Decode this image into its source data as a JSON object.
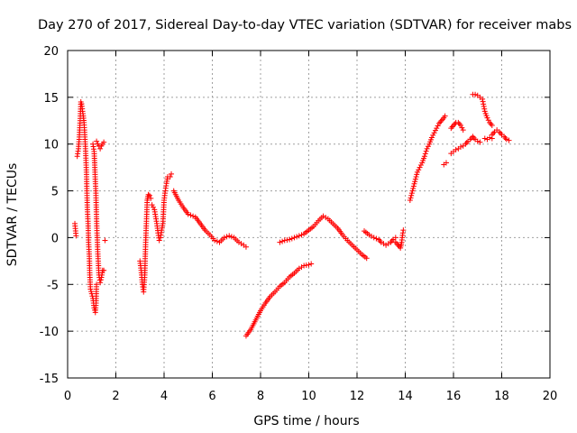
{
  "chart_data": {
    "type": "scatter",
    "title": "Day 270 of 2017, Sidereal Day-to-day VTEC variation (SDTVAR) for receiver mabs",
    "xlabel": "GPS time / hours",
    "ylabel": "SDTVAR / TECUs",
    "xlim": [
      0,
      20
    ],
    "ylim": [
      -15,
      20
    ],
    "xticks": [
      0,
      2,
      4,
      6,
      8,
      10,
      12,
      14,
      16,
      18,
      20
    ],
    "yticks": [
      -15,
      -10,
      -5,
      0,
      5,
      10,
      15,
      20
    ],
    "grid": true,
    "legend": "none",
    "marker": "+",
    "color": "#ff0000",
    "series": [
      {
        "name": "SDTVAR",
        "segments": [
          [
            [
              0.3,
              1.5
            ],
            [
              0.35,
              0.2
            ]
          ],
          [
            [
              0.4,
              8.7
            ],
            [
              0.45,
              9.5
            ],
            [
              0.48,
              10.5
            ],
            [
              0.52,
              12.5
            ],
            [
              0.55,
              14.5
            ],
            [
              0.58,
              14.3
            ],
            [
              0.62,
              13.5
            ],
            [
              0.65,
              13.0
            ],
            [
              0.68,
              12.3
            ],
            [
              0.7,
              11.5
            ],
            [
              0.72,
              10.5
            ],
            [
              0.75,
              9.0
            ],
            [
              0.78,
              7.0
            ],
            [
              0.8,
              5.0
            ],
            [
              0.82,
              3.0
            ],
            [
              0.85,
              1.5
            ],
            [
              0.87,
              -0.5
            ],
            [
              0.9,
              -2.0
            ],
            [
              0.92,
              -4.0
            ],
            [
              0.95,
              -5.5
            ],
            [
              1.0,
              -6.0
            ],
            [
              1.05,
              -6.5
            ],
            [
              1.1,
              -7.5
            ],
            [
              1.15,
              -8.0
            ],
            [
              1.18,
              -7.0
            ],
            [
              1.2,
              -5.0
            ]
          ],
          [
            [
              1.05,
              10.0
            ],
            [
              1.1,
              9.2
            ],
            [
              1.12,
              8.0
            ],
            [
              1.15,
              6.0
            ],
            [
              1.17,
              5.0
            ],
            [
              1.2,
              2.0
            ],
            [
              1.22,
              0.5
            ],
            [
              1.25,
              -1.5
            ],
            [
              1.28,
              -3.0
            ],
            [
              1.3,
              -4.0
            ],
            [
              1.35,
              -4.8
            ],
            [
              1.38,
              -4.5
            ],
            [
              1.42,
              -4.0
            ],
            [
              1.45,
              -3.5
            ],
            [
              1.5,
              -3.5
            ]
          ],
          [
            [
              1.2,
              10.3
            ],
            [
              1.25,
              10.0
            ],
            [
              1.3,
              9.8
            ],
            [
              1.35,
              9.5
            ],
            [
              1.4,
              9.8
            ],
            [
              1.45,
              10.0
            ],
            [
              1.5,
              10.2
            ]
          ],
          [
            [
              1.55,
              -0.3
            ]
          ],
          [
            [
              3.0,
              -2.5
            ],
            [
              3.05,
              -3.5
            ],
            [
              3.1,
              -5.0
            ],
            [
              3.15,
              -5.8
            ],
            [
              3.2,
              -4.0
            ],
            [
              3.22,
              -2.0
            ],
            [
              3.25,
              0.5
            ],
            [
              3.28,
              2.5
            ],
            [
              3.3,
              4.0
            ],
            [
              3.35,
              4.6
            ],
            [
              3.4,
              4.5
            ],
            [
              3.45,
              4.2
            ]
          ],
          [
            [
              3.5,
              3.5
            ],
            [
              3.6,
              3.0
            ],
            [
              3.7,
              1.5
            ],
            [
              3.75,
              0.5
            ],
            [
              3.8,
              -0.3
            ],
            [
              3.85,
              0.0
            ],
            [
              3.9,
              0.8
            ],
            [
              3.95,
              1.5
            ],
            [
              4.0,
              4.0
            ],
            [
              4.05,
              5.0
            ],
            [
              4.1,
              5.8
            ],
            [
              4.15,
              6.5
            ],
            [
              4.25,
              6.5
            ],
            [
              4.3,
              6.8
            ]
          ],
          [
            [
              4.4,
              5.0
            ],
            [
              4.6,
              4.0
            ],
            [
              4.8,
              3.2
            ],
            [
              5.0,
              2.5
            ],
            [
              5.3,
              2.2
            ],
            [
              5.5,
              1.5
            ],
            [
              5.7,
              0.8
            ],
            [
              5.9,
              0.3
            ],
            [
              6.1,
              -0.3
            ],
            [
              6.3,
              -0.5
            ],
            [
              6.5,
              0.0
            ],
            [
              6.7,
              0.2
            ],
            [
              6.9,
              0.0
            ],
            [
              7.1,
              -0.5
            ],
            [
              7.3,
              -0.8
            ],
            [
              7.4,
              -1.0
            ]
          ],
          [
            [
              7.4,
              -10.5
            ],
            [
              7.6,
              -9.8
            ],
            [
              7.8,
              -8.8
            ],
            [
              8.0,
              -7.8
            ],
            [
              8.2,
              -7.0
            ],
            [
              8.4,
              -6.3
            ],
            [
              8.6,
              -5.8
            ],
            [
              8.8,
              -5.2
            ],
            [
              9.0,
              -4.8
            ],
            [
              9.2,
              -4.2
            ],
            [
              9.4,
              -3.8
            ],
            [
              9.6,
              -3.3
            ],
            [
              9.8,
              -3.0
            ],
            [
              10.0,
              -2.9
            ],
            [
              10.1,
              -2.8
            ]
          ],
          [
            [
              8.8,
              -0.5
            ],
            [
              9.0,
              -0.3
            ],
            [
              9.2,
              -0.2
            ],
            [
              9.4,
              0.0
            ],
            [
              9.6,
              0.2
            ],
            [
              9.8,
              0.4
            ],
            [
              10.0,
              0.8
            ],
            [
              10.2,
              1.2
            ],
            [
              10.4,
              1.8
            ],
            [
              10.6,
              2.3
            ],
            [
              10.8,
              2.0
            ],
            [
              11.0,
              1.5
            ],
            [
              11.2,
              1.0
            ],
            [
              11.4,
              0.3
            ],
            [
              11.6,
              -0.3
            ],
            [
              11.8,
              -0.8
            ],
            [
              12.0,
              -1.3
            ],
            [
              12.2,
              -1.8
            ],
            [
              12.4,
              -2.2
            ]
          ],
          [
            [
              12.3,
              0.7
            ],
            [
              12.5,
              0.3
            ],
            [
              12.7,
              0.0
            ],
            [
              12.9,
              -0.2
            ],
            [
              13.0,
              -0.5
            ],
            [
              13.2,
              -0.8
            ],
            [
              13.4,
              -0.5
            ],
            [
              13.5,
              -0.2
            ],
            [
              13.6,
              0.0
            ]
          ],
          [
            [
              13.6,
              -0.5
            ],
            [
              13.7,
              -0.8
            ],
            [
              13.8,
              -1.1
            ],
            [
              13.85,
              -0.5
            ],
            [
              13.9,
              0.5
            ],
            [
              13.92,
              0.8
            ]
          ],
          [
            [
              14.2,
              4.0
            ],
            [
              14.3,
              5.0
            ],
            [
              14.4,
              6.0
            ],
            [
              14.5,
              7.0
            ],
            [
              14.6,
              7.5
            ],
            [
              14.7,
              8.0
            ],
            [
              14.8,
              8.7
            ],
            [
              14.9,
              9.5
            ],
            [
              15.0,
              10.0
            ],
            [
              15.1,
              10.7
            ],
            [
              15.2,
              11.2
            ],
            [
              15.3,
              11.7
            ],
            [
              15.4,
              12.2
            ],
            [
              15.5,
              12.5
            ],
            [
              15.6,
              12.8
            ],
            [
              15.65,
              13.0
            ]
          ],
          [
            [
              15.6,
              7.8
            ],
            [
              15.7,
              8.0
            ]
          ],
          [
            [
              15.9,
              9.0
            ],
            [
              16.0,
              9.2
            ],
            [
              16.1,
              9.4
            ],
            [
              16.2,
              9.5
            ],
            [
              16.3,
              9.7
            ],
            [
              16.4,
              9.8
            ],
            [
              16.5,
              10.0
            ],
            [
              16.6,
              10.3
            ],
            [
              16.7,
              10.5
            ],
            [
              16.8,
              10.8
            ],
            [
              16.9,
              10.5
            ],
            [
              17.0,
              10.3
            ],
            [
              17.1,
              10.2
            ]
          ],
          [
            [
              15.9,
              11.7
            ],
            [
              16.0,
              12.0
            ],
            [
              16.1,
              12.3
            ],
            [
              16.2,
              12.3
            ],
            [
              16.3,
              12.0
            ],
            [
              16.4,
              11.5
            ]
          ],
          [
            [
              16.8,
              15.3
            ],
            [
              16.9,
              15.3
            ],
            [
              17.0,
              15.2
            ],
            [
              17.1,
              15.0
            ],
            [
              17.2,
              14.8
            ],
            [
              17.3,
              13.5
            ],
            [
              17.4,
              12.8
            ],
            [
              17.5,
              12.3
            ],
            [
              17.6,
              12.0
            ]
          ],
          [
            [
              17.6,
              11.0
            ],
            [
              17.7,
              11.3
            ],
            [
              17.8,
              11.5
            ],
            [
              17.9,
              11.3
            ],
            [
              18.0,
              11.0
            ],
            [
              18.1,
              10.8
            ],
            [
              18.2,
              10.5
            ],
            [
              18.3,
              10.4
            ]
          ],
          [
            [
              17.3,
              10.6
            ],
            [
              17.4,
              10.5
            ],
            [
              17.5,
              10.7
            ],
            [
              17.6,
              10.6
            ]
          ]
        ]
      }
    ]
  }
}
